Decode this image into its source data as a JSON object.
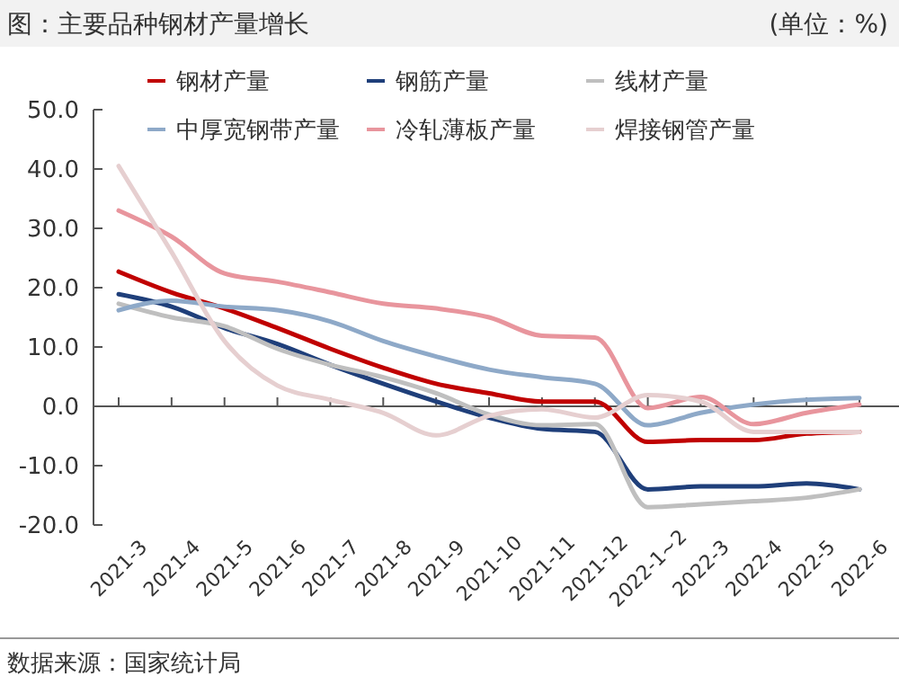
{
  "chart_data": {
    "type": "line",
    "title": "图：主要品种钢材产量增长",
    "subtitle": "(单位：%)",
    "categories": [
      "2021-3",
      "2021-4",
      "2021-5",
      "2021-6",
      "2021-7",
      "2021-8",
      "2021-9",
      "2021-10",
      "2021-11",
      "2021-12",
      "2022-1~2",
      "2022-3",
      "2022-4",
      "2022-5",
      "2022-6"
    ],
    "series": [
      {
        "name": "钢材产量",
        "color": "#c00000",
        "values": [
          22.7,
          19.2,
          16.5,
          13.2,
          9.7,
          6.5,
          3.8,
          2.2,
          0.8,
          0.8,
          -6,
          -5.7,
          -5.7,
          -4.6,
          -4.3
        ]
      },
      {
        "name": "钢筋产量",
        "color": "#1f3f7a",
        "values": [
          18.9,
          16.8,
          13.2,
          10.5,
          7,
          3.8,
          0.8,
          -1.9,
          -3.8,
          -4.3,
          -14,
          -13.5,
          -13.5,
          -13,
          -14
        ]
      },
      {
        "name": "线材产量",
        "color": "#bfbfbf",
        "values": [
          17.3,
          15,
          13.5,
          9.7,
          7,
          4.9,
          2.2,
          -1.4,
          -3.2,
          -3,
          -17,
          -16.5,
          -16,
          -15.4,
          -14
        ]
      },
      {
        "name": "中厚宽钢带产量",
        "color": "#8ea9c8",
        "values": [
          16.2,
          17.8,
          16.8,
          16.2,
          14.3,
          11,
          8.4,
          6.2,
          4.9,
          3.8,
          -3.2,
          -1.1,
          0.3,
          1.1,
          1.4
        ]
      },
      {
        "name": "冷轧薄板产量",
        "color": "#e8959d",
        "values": [
          33,
          28.6,
          22.4,
          21,
          19.2,
          17.3,
          16.5,
          15,
          11.9,
          11.6,
          -0.3,
          1.6,
          -3,
          -1.1,
          0.3
        ]
      },
      {
        "name": "焊接钢管产量",
        "color": "#e6cfd0",
        "values": [
          40.5,
          26,
          11,
          3.5,
          1.1,
          -1.1,
          -4.9,
          -1.6,
          -0.5,
          -1.9,
          1.9,
          0.8,
          -4.3,
          -4.3,
          -4.3
        ]
      }
    ],
    "ylim": [
      -20,
      50
    ],
    "yticks": [
      {
        "value": -20,
        "label": "-20.0"
      },
      {
        "value": -10,
        "label": "-10.0"
      },
      {
        "value": 0,
        "label": "0.0"
      },
      {
        "value": 10,
        "label": "10.0"
      },
      {
        "value": 20,
        "label": "20.0"
      },
      {
        "value": 30,
        "label": "30.0"
      },
      {
        "value": 40,
        "label": "40.0"
      },
      {
        "value": 50,
        "label": "50.0"
      }
    ],
    "legend": "top",
    "marker": "none",
    "line_style": "solid",
    "annotations": [
      "数据来源：国家统计局"
    ]
  }
}
